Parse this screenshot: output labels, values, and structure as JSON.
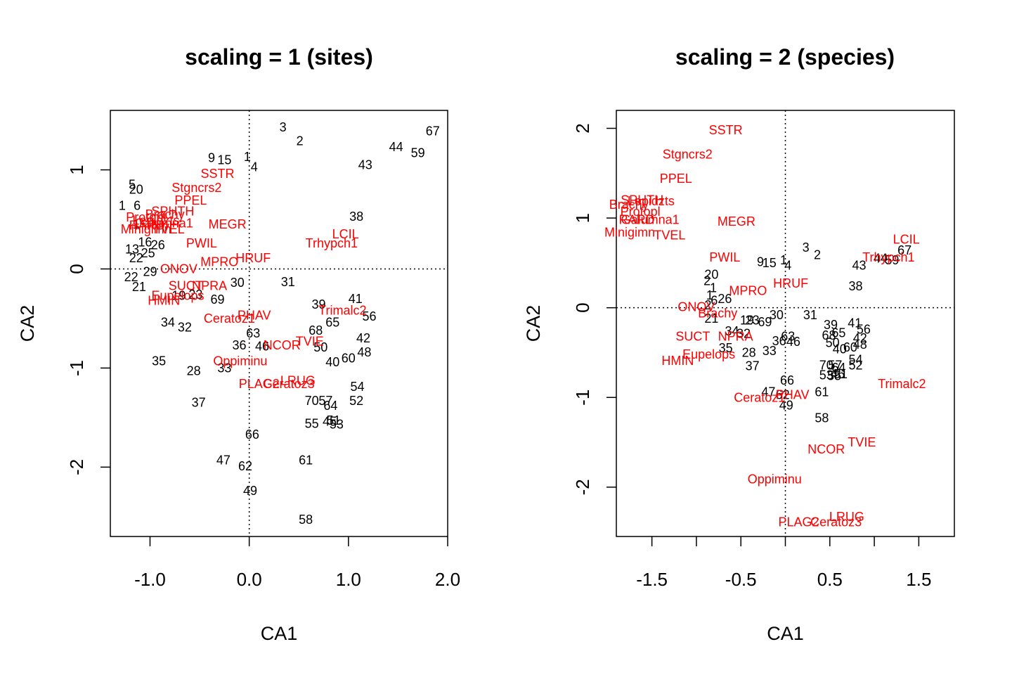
{
  "chart_data": [
    {
      "type": "scatter",
      "title": "scaling = 1 (sites)",
      "xlabel": "CA1",
      "ylabel": "CA2",
      "xlim": [
        -1.4,
        2.0
      ],
      "ylim": [
        -2.7,
        1.6
      ],
      "xticks": [
        -1.0,
        0.0,
        1.0,
        2.0
      ],
      "xtick_labels": [
        "-1.0",
        "0.0",
        "1.0",
        "2.0"
      ],
      "yticks": [
        -2,
        -1,
        0,
        1
      ],
      "ytick_labels": [
        "-2",
        "-1",
        "0",
        "1"
      ],
      "reference_lines": {
        "x": 0,
        "y": 0
      },
      "colors": {
        "sites": "#000000",
        "species": "#ff0000"
      },
      "sites": [
        {
          "label": "3",
          "x": 0.34,
          "y": 1.43
        },
        {
          "label": "2",
          "x": 0.51,
          "y": 1.29
        },
        {
          "label": "67",
          "x": 1.85,
          "y": 1.39
        },
        {
          "label": "44",
          "x": 1.48,
          "y": 1.23
        },
        {
          "label": "59",
          "x": 1.7,
          "y": 1.17
        },
        {
          "label": "9",
          "x": -0.38,
          "y": 1.12
        },
        {
          "label": "15",
          "x": -0.25,
          "y": 1.1
        },
        {
          "label": "1",
          "x": -0.02,
          "y": 1.13
        },
        {
          "label": "4",
          "x": 0.05,
          "y": 1.03
        },
        {
          "label": "43",
          "x": 1.17,
          "y": 1.05
        },
        {
          "label": "5",
          "x": -1.18,
          "y": 0.85
        },
        {
          "label": "20",
          "x": -1.14,
          "y": 0.8
        },
        {
          "label": "38",
          "x": 1.08,
          "y": 0.53
        },
        {
          "label": "1",
          "x": -1.28,
          "y": 0.64
        },
        {
          "label": "6",
          "x": -1.13,
          "y": 0.64
        },
        {
          "label": "1",
          "x": -1.14,
          "y": 0.45
        },
        {
          "label": "16",
          "x": -1.05,
          "y": 0.27
        },
        {
          "label": "26",
          "x": -0.92,
          "y": 0.24
        },
        {
          "label": "13",
          "x": -1.18,
          "y": 0.2
        },
        {
          "label": "25",
          "x": -1.02,
          "y": 0.16
        },
        {
          "label": "22",
          "x": -1.14,
          "y": 0.11
        },
        {
          "label": "29",
          "x": -1.0,
          "y": -0.03
        },
        {
          "label": "22",
          "x": -1.19,
          "y": -0.08
        },
        {
          "label": "21",
          "x": -1.11,
          "y": -0.18
        },
        {
          "label": "30",
          "x": -0.12,
          "y": -0.14
        },
        {
          "label": "31",
          "x": 0.39,
          "y": -0.13
        },
        {
          "label": "19",
          "x": -0.71,
          "y": -0.27
        },
        {
          "label": "23",
          "x": -0.54,
          "y": -0.26
        },
        {
          "label": "69",
          "x": -0.32,
          "y": -0.31
        },
        {
          "label": "39",
          "x": 0.7,
          "y": -0.36
        },
        {
          "label": "41",
          "x": 1.07,
          "y": -0.3
        },
        {
          "label": "56",
          "x": 1.21,
          "y": -0.48
        },
        {
          "label": "65",
          "x": 0.84,
          "y": -0.54
        },
        {
          "label": "68",
          "x": 0.67,
          "y": -0.62
        },
        {
          "label": "34",
          "x": -0.82,
          "y": -0.54
        },
        {
          "label": "32",
          "x": -0.65,
          "y": -0.59
        },
        {
          "label": "63",
          "x": 0.04,
          "y": -0.65
        },
        {
          "label": "36",
          "x": -0.1,
          "y": -0.77
        },
        {
          "label": "46",
          "x": 0.13,
          "y": -0.78
        },
        {
          "label": "42",
          "x": 1.15,
          "y": -0.7
        },
        {
          "label": "50",
          "x": 0.72,
          "y": -0.79
        },
        {
          "label": "48",
          "x": 1.16,
          "y": -0.84
        },
        {
          "label": "60",
          "x": 1.0,
          "y": -0.9
        },
        {
          "label": "40",
          "x": 0.84,
          "y": -0.94
        },
        {
          "label": "35",
          "x": -0.91,
          "y": -0.93
        },
        {
          "label": "28",
          "x": -0.56,
          "y": -1.03
        },
        {
          "label": "33",
          "x": -0.25,
          "y": -1.0
        },
        {
          "label": "54",
          "x": 1.09,
          "y": -1.19
        },
        {
          "label": "70",
          "x": 0.63,
          "y": -1.33
        },
        {
          "label": "57",
          "x": 0.77,
          "y": -1.33
        },
        {
          "label": "52",
          "x": 1.08,
          "y": -1.33
        },
        {
          "label": "37",
          "x": -0.51,
          "y": -1.35
        },
        {
          "label": "64",
          "x": 0.82,
          "y": -1.38
        },
        {
          "label": "55",
          "x": 0.63,
          "y": -1.56
        },
        {
          "label": "45",
          "x": 0.81,
          "y": -1.54
        },
        {
          "label": "51",
          "x": 0.85,
          "y": -1.53
        },
        {
          "label": "53",
          "x": 0.88,
          "y": -1.57
        },
        {
          "label": "66",
          "x": 0.03,
          "y": -1.67
        },
        {
          "label": "47",
          "x": -0.26,
          "y": -1.93
        },
        {
          "label": "62",
          "x": -0.04,
          "y": -1.99
        },
        {
          "label": "61",
          "x": 0.57,
          "y": -1.93
        },
        {
          "label": "49",
          "x": 0.01,
          "y": -2.24
        },
        {
          "label": "58",
          "x": 0.57,
          "y": -2.53
        }
      ],
      "species": [
        {
          "label": "SSTR",
          "x": -0.32,
          "y": 0.96
        },
        {
          "label": "Stgncrs2",
          "x": -0.53,
          "y": 0.82
        },
        {
          "label": "PPEL",
          "x": -0.59,
          "y": 0.69
        },
        {
          "label": "SPHTH",
          "x": -0.77,
          "y": 0.58
        },
        {
          "label": "Brachy",
          "x": -0.85,
          "y": 0.55
        },
        {
          "label": "Protopl",
          "x": -1.04,
          "y": 0.52
        },
        {
          "label": "Lepidzts",
          "x": -0.94,
          "y": 0.49
        },
        {
          "label": "RARD",
          "x": -1.03,
          "y": 0.44
        },
        {
          "label": "Galumna1",
          "x": -0.86,
          "y": 0.46
        },
        {
          "label": "Minigimn",
          "x": -1.04,
          "y": 0.4
        },
        {
          "label": "TVEL",
          "x": -0.81,
          "y": 0.4
        },
        {
          "label": "MEGR",
          "x": -0.22,
          "y": 0.45
        },
        {
          "label": "LCIL",
          "x": 0.97,
          "y": 0.35
        },
        {
          "label": "Trhypch1",
          "x": 0.83,
          "y": 0.26
        },
        {
          "label": "PWIL",
          "x": -0.48,
          "y": 0.26
        },
        {
          "label": "HRUF",
          "x": 0.04,
          "y": 0.11
        },
        {
          "label": "MPRO",
          "x": -0.3,
          "y": 0.07
        },
        {
          "label": "ONOV",
          "x": -0.71,
          "y": 0.0
        },
        {
          "label": "Eupelops",
          "x": -0.72,
          "y": -0.27
        },
        {
          "label": "SUCT",
          "x": -0.64,
          "y": -0.17
        },
        {
          "label": "NPRA",
          "x": -0.4,
          "y": -0.17
        },
        {
          "label": "HMIN",
          "x": -0.86,
          "y": -0.32
        },
        {
          "label": "Trimalc2",
          "x": 0.94,
          "y": -0.42
        },
        {
          "label": "Ceratoz1",
          "x": -0.2,
          "y": -0.5
        },
        {
          "label": "PHAV",
          "x": 0.05,
          "y": -0.47
        },
        {
          "label": "NCOR",
          "x": 0.33,
          "y": -0.77
        },
        {
          "label": "TVIE",
          "x": 0.61,
          "y": -0.73
        },
        {
          "label": "Oppiminu",
          "x": -0.09,
          "y": -0.93
        },
        {
          "label": "LRUG",
          "x": 0.49,
          "y": -1.13
        },
        {
          "label": "PLAG2",
          "x": 0.1,
          "y": -1.16
        },
        {
          "label": "Ceratoz3",
          "x": 0.4,
          "y": -1.16
        }
      ]
    },
    {
      "type": "scatter",
      "title": "scaling = 2 (species)",
      "xlabel": "CA1",
      "ylabel": "CA2",
      "xlim": [
        -1.9,
        1.9
      ],
      "ylim": [
        -2.55,
        2.2
      ],
      "xticks": [
        -1.5,
        -1.0,
        -0.5,
        0.0,
        0.5,
        1.0,
        1.5
      ],
      "xtick_labels": [
        "-1.5",
        "",
        "-0.5",
        "",
        "0.5",
        "",
        "1.5"
      ],
      "yticks": [
        -2,
        -1,
        0,
        1,
        2
      ],
      "ytick_labels": [
        "-2",
        "-1",
        "0",
        "1",
        "2"
      ],
      "reference_lines": {
        "x": 0,
        "y": 0
      },
      "colors": {
        "sites": "#000000",
        "species": "#ff0000"
      },
      "sites": [
        {
          "label": "3",
          "x": 0.23,
          "y": 0.67
        },
        {
          "label": "2",
          "x": 0.36,
          "y": 0.59
        },
        {
          "label": "67",
          "x": 1.34,
          "y": 0.64
        },
        {
          "label": "44",
          "x": 1.07,
          "y": 0.55
        },
        {
          "label": "59",
          "x": 1.2,
          "y": 0.53
        },
        {
          "label": "43",
          "x": 0.83,
          "y": 0.47
        },
        {
          "label": "9",
          "x": -0.28,
          "y": 0.51
        },
        {
          "label": "15",
          "x": -0.18,
          "y": 0.5
        },
        {
          "label": "1",
          "x": -0.02,
          "y": 0.53
        },
        {
          "label": "4",
          "x": 0.03,
          "y": 0.47
        },
        {
          "label": "38",
          "x": 0.79,
          "y": 0.24
        },
        {
          "label": "20",
          "x": -0.83,
          "y": 0.37
        },
        {
          "label": "2",
          "x": -0.88,
          "y": 0.3
        },
        {
          "label": "1",
          "x": -0.81,
          "y": 0.22
        },
        {
          "label": "1",
          "x": -0.85,
          "y": 0.14
        },
        {
          "label": "6",
          "x": -0.8,
          "y": 0.08
        },
        {
          "label": "26",
          "x": -0.68,
          "y": 0.1
        },
        {
          "label": "2",
          "x": -0.87,
          "y": 0.03
        },
        {
          "label": "21",
          "x": -0.83,
          "y": -0.12
        },
        {
          "label": "19",
          "x": -0.43,
          "y": -0.14
        },
        {
          "label": "23",
          "x": -0.37,
          "y": -0.14
        },
        {
          "label": "69",
          "x": -0.23,
          "y": -0.16
        },
        {
          "label": "30",
          "x": -0.1,
          "y": -0.08
        },
        {
          "label": "31",
          "x": 0.28,
          "y": -0.08
        },
        {
          "label": "39",
          "x": 0.51,
          "y": -0.19
        },
        {
          "label": "41",
          "x": 0.78,
          "y": -0.17
        },
        {
          "label": "56",
          "x": 0.88,
          "y": -0.24
        },
        {
          "label": "65",
          "x": 0.6,
          "y": -0.28
        },
        {
          "label": "68",
          "x": 0.49,
          "y": -0.31
        },
        {
          "label": "42",
          "x": 0.84,
          "y": -0.34
        },
        {
          "label": "50",
          "x": 0.53,
          "y": -0.39
        },
        {
          "label": "48",
          "x": 0.84,
          "y": -0.41
        },
        {
          "label": "60",
          "x": 0.73,
          "y": -0.44
        },
        {
          "label": "40",
          "x": 0.61,
          "y": -0.46
        },
        {
          "label": "34",
          "x": -0.6,
          "y": -0.26
        },
        {
          "label": "32",
          "x": -0.47,
          "y": -0.29
        },
        {
          "label": "63",
          "x": 0.03,
          "y": -0.32
        },
        {
          "label": "36",
          "x": -0.07,
          "y": -0.37
        },
        {
          "label": "46",
          "x": 0.09,
          "y": -0.38
        },
        {
          "label": "35",
          "x": -0.67,
          "y": -0.45
        },
        {
          "label": "28",
          "x": -0.41,
          "y": -0.5
        },
        {
          "label": "33",
          "x": -0.18,
          "y": -0.48
        },
        {
          "label": "37",
          "x": -0.37,
          "y": -0.65
        },
        {
          "label": "54",
          "x": 0.79,
          "y": -0.58
        },
        {
          "label": "70",
          "x": 0.46,
          "y": -0.64
        },
        {
          "label": "57",
          "x": 0.56,
          "y": -0.64
        },
        {
          "label": "52",
          "x": 0.79,
          "y": -0.64
        },
        {
          "label": "64",
          "x": 0.6,
          "y": -0.67
        },
        {
          "label": "53",
          "x": 0.46,
          "y": -0.75
        },
        {
          "label": "45",
          "x": 0.59,
          "y": -0.74
        },
        {
          "label": "51",
          "x": 0.62,
          "y": -0.74
        },
        {
          "label": "55",
          "x": 0.55,
          "y": -0.76
        },
        {
          "label": "66",
          "x": 0.02,
          "y": -0.81
        },
        {
          "label": "61",
          "x": 0.41,
          "y": -0.94
        },
        {
          "label": "47",
          "x": -0.19,
          "y": -0.94
        },
        {
          "label": "62",
          "x": -0.03,
          "y": -0.97
        },
        {
          "label": "49",
          "x": 0.01,
          "y": -1.09
        },
        {
          "label": "58",
          "x": 0.41,
          "y": -1.23
        }
      ],
      "species": [
        {
          "label": "SSTR",
          "x": -0.67,
          "y": 1.98
        },
        {
          "label": "Stgncrs2",
          "x": -1.1,
          "y": 1.71
        },
        {
          "label": "PPEL",
          "x": -1.23,
          "y": 1.44
        },
        {
          "label": "SPHTH",
          "x": -1.61,
          "y": 1.2
        },
        {
          "label": "Brachy",
          "x": -1.76,
          "y": 1.15
        },
        {
          "label": "Lepidzts",
          "x": -1.51,
          "y": 1.19
        },
        {
          "label": "Protopl",
          "x": -1.63,
          "y": 1.07
        },
        {
          "label": "RARD",
          "x": -1.67,
          "y": 0.98
        },
        {
          "label": "Galumna1",
          "x": -1.52,
          "y": 0.98
        },
        {
          "label": "Minigimn",
          "x": -1.75,
          "y": 0.84
        },
        {
          "label": "TVEL",
          "x": -1.3,
          "y": 0.81
        },
        {
          "label": "MEGR",
          "x": -0.55,
          "y": 0.96
        },
        {
          "label": "LCIL",
          "x": 1.36,
          "y": 0.76
        },
        {
          "label": "Trhypch1",
          "x": 1.16,
          "y": 0.56
        },
        {
          "label": "PWIL",
          "x": -0.68,
          "y": 0.56
        },
        {
          "label": "HRUF",
          "x": 0.06,
          "y": 0.27
        },
        {
          "label": "MPRO",
          "x": -0.42,
          "y": 0.19
        },
        {
          "label": "ONOV",
          "x": -1.0,
          "y": 0.01
        },
        {
          "label": "Brachy",
          "x": -0.76,
          "y": -0.06
        },
        {
          "label": "SUCT",
          "x": -1.04,
          "y": -0.32
        },
        {
          "label": "NPRA",
          "x": -0.56,
          "y": -0.32
        },
        {
          "label": "HMIN",
          "x": -1.21,
          "y": -0.59
        },
        {
          "label": "Eupelops",
          "x": -0.86,
          "y": -0.52
        },
        {
          "label": "Trimalc2",
          "x": 1.31,
          "y": -0.85
        },
        {
          "label": "Ceratoz1",
          "x": -0.29,
          "y": -1.0
        },
        {
          "label": "PHAV",
          "x": 0.08,
          "y": -0.97
        },
        {
          "label": "NCOR",
          "x": 0.46,
          "y": -1.58
        },
        {
          "label": "TVIE",
          "x": 0.86,
          "y": -1.5
        },
        {
          "label": "Oppiminu",
          "x": -0.12,
          "y": -1.91
        },
        {
          "label": "LRUG",
          "x": 0.69,
          "y": -2.33
        },
        {
          "label": "PLAG2",
          "x": 0.15,
          "y": -2.39
        },
        {
          "label": "Ceratoz3",
          "x": 0.57,
          "y": -2.39
        }
      ]
    }
  ]
}
